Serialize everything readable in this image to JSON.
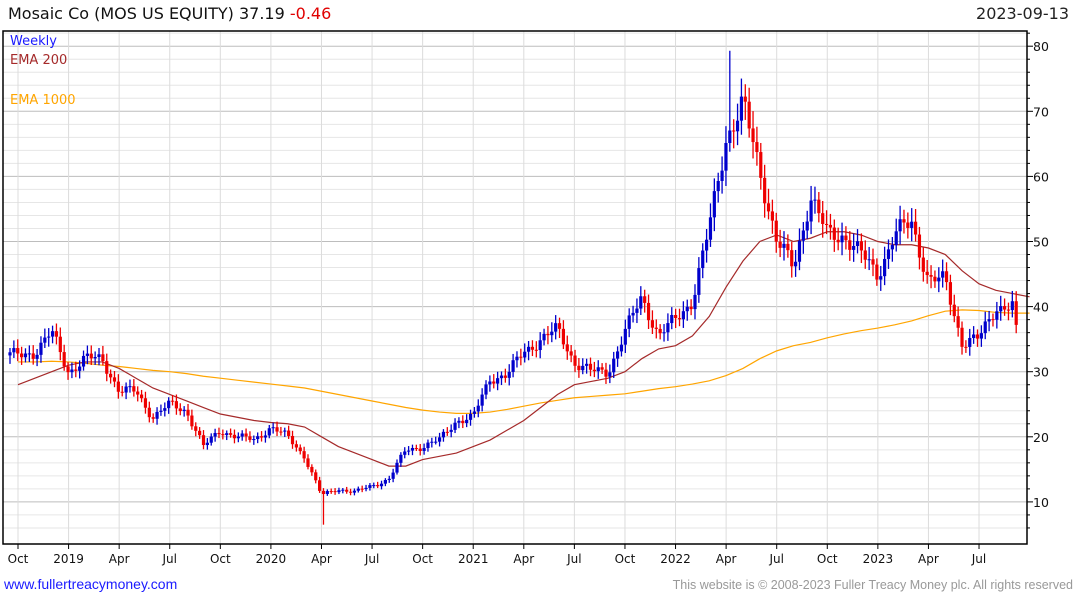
{
  "header": {
    "company": "Mosaic Co (MOS US EQUITY)",
    "price": "37.19",
    "change": "-0.46",
    "date": "2023-09-13"
  },
  "legend": {
    "frequency": "Weekly",
    "ema200": "EMA 200",
    "ema1000": "EMA 1000"
  },
  "footer": {
    "link": "www.fullertreacymoney.com",
    "copyright": "This website is © 2008-2023 Fuller Treacy Money plc. All rights reserved"
  },
  "colors": {
    "up": "#0000cc",
    "down": "#ee0000",
    "ema200": "#a52a2a",
    "ema1000": "#ffa500"
  },
  "chart_data": {
    "type": "candlestick",
    "frequency": "weekly",
    "ylim": [
      4,
      82
    ],
    "yticks": [
      10,
      20,
      30,
      40,
      50,
      60,
      70,
      80
    ],
    "xticks": [
      "Oct",
      "2019",
      "Apr",
      "Jul",
      "Oct",
      "2020",
      "Apr",
      "Jul",
      "Oct",
      "2021",
      "Apr",
      "Jul",
      "Oct",
      "2022",
      "Apr",
      "Jul",
      "Oct",
      "2023",
      "Apr",
      "Jul"
    ],
    "month_start": "2018-09",
    "monthly_close": [
      32.5,
      33,
      36,
      30,
      32,
      32,
      27,
      27,
      23,
      25,
      24,
      18.5,
      21,
      20,
      19.5,
      21.5,
      20,
      17,
      11,
      12,
      11.5,
      12.5,
      13.5,
      18,
      18.5,
      19.5,
      22.5,
      23,
      29,
      29.5,
      33,
      35,
      36.5,
      31.5,
      30,
      30,
      36,
      41.5,
      35.5,
      38,
      41,
      52,
      66,
      71,
      61,
      50,
      46,
      57,
      51,
      51,
      48,
      45,
      51,
      53,
      44,
      44,
      34.5,
      35,
      40,
      40,
      37.19
    ],
    "ema200": [
      28,
      29,
      30,
      31,
      31.5,
      31.5,
      30.5,
      29,
      27.5,
      26.5,
      25.5,
      24.5,
      23.5,
      23,
      22.5,
      22.2,
      22,
      21.5,
      20,
      18.5,
      17.5,
      16.5,
      15.5,
      15.5,
      16.5,
      17,
      17.5,
      18.5,
      19.5,
      21,
      22.5,
      24.5,
      26.5,
      28,
      28.5,
      29,
      30,
      32,
      33.5,
      34,
      35.5,
      38.5,
      43,
      47,
      50,
      51,
      50,
      50.5,
      51.5,
      51.5,
      51,
      50,
      49.5,
      49.5,
      49,
      48,
      45.5,
      43.5,
      42.5,
      42,
      41.5
    ],
    "ema1000": [
      31.5,
      31.5,
      31.6,
      31.5,
      31.3,
      31,
      30.8,
      30.5,
      30.2,
      30,
      29.7,
      29.3,
      29,
      28.7,
      28.4,
      28.1,
      27.8,
      27.5,
      27,
      26.5,
      26,
      25.5,
      25,
      24.5,
      24.1,
      23.8,
      23.6,
      23.6,
      23.8,
      24.2,
      24.7,
      25.2,
      25.6,
      26,
      26.2,
      26.4,
      26.6,
      27,
      27.4,
      27.7,
      28.1,
      28.6,
      29.4,
      30.5,
      32,
      33.2,
      34,
      34.5,
      35.2,
      35.8,
      36.3,
      36.7,
      37.2,
      37.8,
      38.6,
      39.3,
      39.5,
      39.4,
      39.1,
      39,
      39
    ],
    "extremes": [
      {
        "label": "2020 low",
        "value": 6.5
      },
      {
        "label": "2022 high",
        "value": 79.3
      }
    ]
  }
}
